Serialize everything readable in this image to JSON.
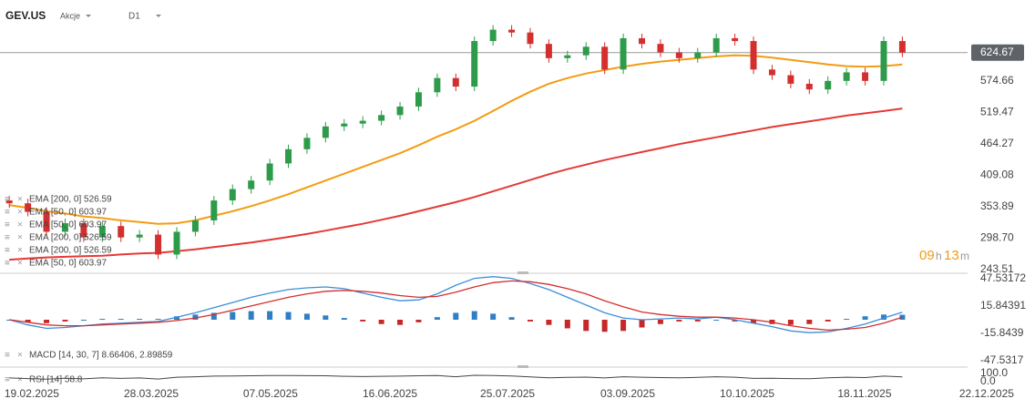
{
  "chart_data": {
    "type": "candlestick",
    "symbol": "GEV.US",
    "instrument_type": "Akcje",
    "timeframe": "D1",
    "countdown": [
      "09",
      "h",
      "13",
      "m"
    ],
    "last_price": 624.67,
    "up_color": "#2e9b4a",
    "down_color": "#d32f2f",
    "xlim": [
      -0.5,
      55.13
    ],
    "xticks": [
      {
        "value": 1.21,
        "label": "19.02.2025"
      },
      {
        "value": 7.63,
        "label": "28.03.2025"
      },
      {
        "value": 14.04,
        "label": "07.05.2025"
      },
      {
        "value": 20.46,
        "label": "16.06.2025"
      },
      {
        "value": 26.78,
        "label": "25.07.2025"
      },
      {
        "value": 33.24,
        "label": "03.09.2025"
      },
      {
        "value": 39.66,
        "label": "10.10.2025"
      },
      {
        "value": 45.97,
        "label": "18.11.2025"
      },
      {
        "value": 52.53,
        "label": "22.12.2025"
      }
    ],
    "ylim": [
      237.11,
      704.31
    ],
    "yticks": [
      243.51,
      {
        "value": 298.7,
        "label": "298.70"
      },
      353.89,
      409.08,
      464.27,
      519.47,
      574.66
    ],
    "open": [
      365,
      360,
      345,
      310,
      325,
      300,
      320,
      300,
      305,
      270,
      310,
      330,
      365,
      385,
      400,
      430,
      455,
      475,
      495,
      500,
      505,
      515,
      530,
      555,
      580,
      565,
      645,
      665,
      660,
      640,
      615,
      620,
      635,
      595,
      650,
      640,
      625,
      615,
      625,
      650,
      645,
      595,
      585,
      570,
      560,
      575,
      590,
      575,
      645
    ],
    "high": [
      373,
      368,
      353,
      333,
      333,
      328,
      328,
      313,
      313,
      318,
      338,
      373,
      393,
      408,
      438,
      463,
      483,
      503,
      508,
      513,
      523,
      538,
      563,
      588,
      588,
      653,
      673,
      673,
      668,
      648,
      628,
      643,
      643,
      658,
      658,
      648,
      633,
      633,
      658,
      658,
      653,
      603,
      593,
      578,
      583,
      598,
      598,
      653,
      653
    ],
    "low": [
      352,
      337,
      302,
      302,
      292,
      292,
      292,
      292,
      262,
      262,
      302,
      322,
      357,
      377,
      392,
      422,
      447,
      467,
      487,
      492,
      497,
      507,
      522,
      547,
      557,
      557,
      637,
      652,
      632,
      607,
      607,
      612,
      587,
      587,
      632,
      617,
      607,
      607,
      617,
      637,
      587,
      577,
      562,
      552,
      552,
      567,
      567,
      567,
      616.67
    ],
    "close": [
      360,
      345,
      310,
      325,
      300,
      320,
      300,
      305,
      270,
      310,
      330,
      365,
      385,
      400,
      430,
      455,
      475,
      495,
      500,
      505,
      515,
      530,
      555,
      580,
      565,
      645,
      665,
      660,
      640,
      615,
      620,
      635,
      595,
      650,
      640,
      625,
      615,
      625,
      650,
      645,
      595,
      585,
      570,
      560,
      575,
      590,
      575,
      645,
      624.67
    ],
    "series": [
      {
        "name": "EMA [50, 0] 603.97",
        "color": "#f39c12",
        "values": [
          357,
          352,
          346,
          342,
          337,
          334,
          330,
          327,
          324,
          325,
          330,
          338,
          346,
          355,
          365,
          376,
          388,
          400,
          412,
          424,
          436,
          448,
          462,
          477,
          490,
          505,
          522,
          540,
          556,
          570,
          580,
          588,
          594,
          600,
          605,
          609,
          612,
          615,
          618,
          620,
          619,
          616,
          612,
          608,
          604,
          601,
          600,
          601,
          603.97
        ]
      },
      {
        "name": "EMA [200, 0] 526.59",
        "color": "#e53935",
        "values": [
          261,
          263,
          265,
          266,
          267,
          268,
          270,
          272,
          273,
          276,
          279,
          283,
          287,
          291,
          296,
          301,
          306,
          312,
          318,
          324,
          331,
          338,
          346,
          354,
          362,
          371,
          381,
          391,
          401,
          411,
          420,
          428,
          436,
          443,
          450,
          457,
          464,
          470,
          476,
          482,
          488,
          494,
          499,
          504,
          509,
          514,
          518,
          522,
          526.59
        ]
      }
    ],
    "legend": [
      "EMA [200, 0] 526.59",
      "EMA [50, 0] 603.97",
      "EMA [50, 0] 603.97",
      "EMA [200, 0] 526.59",
      "EMA [200, 0] 526.59",
      "EMA [50, 0] 603.97"
    ],
    "macd": {
      "label": "MACD [14, 30, 7] 8.66406, 2.89859",
      "ylim": [
        -51.76,
        52.82
      ],
      "yticks": [
        47.53172,
        15.84391,
        -15.8439,
        -47.5317
      ],
      "macd_color": "#3b8fd9",
      "signal_color": "#d32f2f",
      "hist_up_color": "#2f7fc4",
      "hist_down_color": "#c62828",
      "macd": [
        0,
        -6,
        -10,
        -9,
        -7,
        -5,
        -4,
        -3,
        -2,
        3,
        8,
        14,
        20,
        26,
        31,
        35,
        37,
        38,
        36,
        31,
        26,
        22,
        23,
        30,
        40,
        48,
        50,
        48,
        42,
        35,
        26,
        17,
        8,
        2,
        0,
        1,
        2,
        1,
        3,
        0,
        -4,
        -8,
        -13,
        -15,
        -14,
        -10,
        -5,
        2,
        8.66406
      ],
      "signal": [
        0,
        -3,
        -6,
        -7,
        -7,
        -6,
        -5,
        -4,
        -3,
        -1,
        2,
        6,
        11,
        16,
        21,
        26,
        30,
        33,
        34,
        33,
        31,
        28,
        26,
        27,
        32,
        38,
        43,
        45,
        44,
        41,
        36,
        30,
        22,
        15,
        9,
        6,
        4,
        3,
        3,
        2,
        0,
        -3,
        -7,
        -10,
        -12,
        -11,
        -9,
        -4,
        2.89859
      ],
      "histogram": [
        0,
        -3,
        -4,
        -2,
        0,
        1,
        1,
        1,
        1,
        4,
        6,
        8,
        9,
        10,
        10,
        9,
        7,
        5,
        2,
        -2,
        -5,
        -6,
        -3,
        3,
        8,
        10,
        7,
        3,
        -2,
        -6,
        -10,
        -13,
        -14,
        -13,
        -9,
        -5,
        -2,
        -2,
        0,
        -2,
        -4,
        -5,
        -6,
        -5,
        -2,
        1,
        4,
        6,
        5.76547
      ]
    },
    "rsi": {
      "label": "RSI [14] 58.8",
      "ylim": [
        0,
        100
      ],
      "yticks": [
        {
          "value": 100,
          "label": "100.0"
        },
        {
          "value": 0,
          "label": "0.0"
        }
      ],
      "color": "#444444",
      "values": [
        45,
        38,
        30,
        42,
        35,
        48,
        40,
        45,
        32,
        55,
        60,
        68,
        70,
        72,
        75,
        74,
        73,
        72,
        65,
        62,
        66,
        68,
        72,
        74,
        60,
        78,
        76,
        70,
        58,
        48,
        52,
        56,
        45,
        60,
        55,
        50,
        48,
        52,
        60,
        55,
        40,
        42,
        38,
        36,
        48,
        55,
        50,
        68,
        58.8
      ]
    }
  }
}
